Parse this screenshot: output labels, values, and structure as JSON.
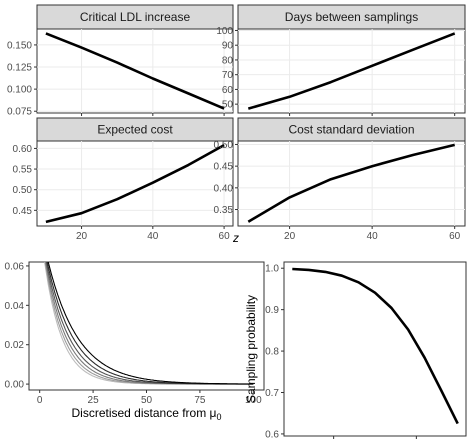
{
  "facet_axis_label": "z",
  "chart_data": [
    {
      "type": "line",
      "title": "Critical LDL increase",
      "x": [
        10,
        20,
        30,
        40,
        50,
        60
      ],
      "series": [
        {
          "values": [
            0.163,
            0.147,
            0.13,
            0.112,
            0.095,
            0.078
          ],
          "color": "#000000"
        }
      ],
      "xlim": [
        7.5,
        62.5
      ],
      "ylim": [
        0.073,
        0.168
      ],
      "yticks": [
        0.075,
        0.1,
        0.125,
        0.15
      ],
      "ytick_labels": [
        "0.075",
        "0.100",
        "0.125",
        "0.150"
      ],
      "xticks": [
        20,
        40,
        60
      ],
      "xtick_labels": [],
      "grid": true
    },
    {
      "type": "line",
      "title": "Days between samplings",
      "x": [
        10,
        20,
        30,
        40,
        50,
        60
      ],
      "series": [
        {
          "values": [
            47,
            55,
            65,
            76,
            87,
            98
          ],
          "color": "#000000"
        }
      ],
      "xlim": [
        7.5,
        62.5
      ],
      "ylim": [
        44,
        101
      ],
      "yticks": [
        50,
        60,
        70,
        80,
        90,
        100
      ],
      "ytick_labels": [
        "50",
        "60",
        "70",
        "80",
        "90",
        "100"
      ],
      "xticks": [
        20,
        40,
        60
      ],
      "xtick_labels": [],
      "grid": true
    },
    {
      "type": "line",
      "title": "Expected cost",
      "x": [
        10,
        20,
        30,
        40,
        50,
        60
      ],
      "series": [
        {
          "values": [
            0.422,
            0.443,
            0.477,
            0.517,
            0.56,
            0.608
          ],
          "color": "#000000"
        }
      ],
      "xlim": [
        7.5,
        62.5
      ],
      "ylim": [
        0.412,
        0.618
      ],
      "yticks": [
        0.45,
        0.5,
        0.55,
        0.6
      ],
      "ytick_labels": [
        "0.45",
        "0.50",
        "0.55",
        "0.60"
      ],
      "xticks": [
        20,
        40,
        60
      ],
      "xtick_labels": [
        "20",
        "40",
        "60"
      ],
      "grid": true
    },
    {
      "type": "line",
      "title": "Cost standard deviation",
      "x": [
        10,
        20,
        30,
        40,
        50,
        60
      ],
      "series": [
        {
          "values": [
            0.322,
            0.378,
            0.42,
            0.45,
            0.476,
            0.499
          ],
          "color": "#000000"
        }
      ],
      "xlim": [
        7.5,
        62.5
      ],
      "ylim": [
        0.312,
        0.508
      ],
      "yticks": [
        0.35,
        0.4,
        0.45,
        0.5
      ],
      "ytick_labels": [
        "0.35",
        "0.40",
        "0.45",
        "0.50"
      ],
      "xticks": [
        20,
        40,
        60
      ],
      "xtick_labels": [
        "20",
        "40",
        "60"
      ],
      "grid": true
    },
    {
      "type": "line",
      "title": "",
      "xlabel": "Discretised distance from μ",
      "xlabel_subscript": "0",
      "ylabel": "",
      "decay_curve": {
        "k_values": [
          0.07,
          0.08,
          0.09,
          0.1,
          0.11,
          0.12
        ],
        "amplitude": 0.082
      },
      "xlim": [
        -5,
        105
      ],
      "ylim": [
        -0.003,
        0.062
      ],
      "xticks": [
        0,
        25,
        50,
        75,
        100
      ],
      "xtick_labels": [
        "0",
        "25",
        "50",
        "75",
        "100"
      ],
      "yticks": [
        0.0,
        0.02,
        0.04,
        0.06
      ],
      "ytick_labels": [
        "0.00",
        "0.02",
        "0.04",
        "0.06"
      ],
      "grid": false,
      "series_colors": [
        "#000000",
        "#2b2b2b",
        "#555555",
        "#7a7a7a",
        "#9c9c9c",
        "#bcbcbc"
      ]
    },
    {
      "type": "line",
      "title": "",
      "ylabel": "Sampling probability",
      "x": [
        0,
        10,
        20,
        30,
        40,
        50,
        60,
        70,
        80,
        90,
        100
      ],
      "series": [
        {
          "values": [
            0.998,
            0.996,
            0.991,
            0.982,
            0.966,
            0.941,
            0.904,
            0.852,
            0.784,
            0.705,
            0.625
          ],
          "color": "#000000"
        }
      ],
      "xlim": [
        -5,
        105
      ],
      "ylim": [
        0.595,
        1.015
      ],
      "yticks": [
        0.6,
        0.7,
        0.8,
        0.9,
        1.0
      ],
      "ytick_labels": [
        "0.6",
        "0.7",
        "0.8",
        "0.9",
        "1.0"
      ],
      "xticks": [
        25,
        75
      ],
      "xtick_labels": [],
      "grid": false
    }
  ]
}
